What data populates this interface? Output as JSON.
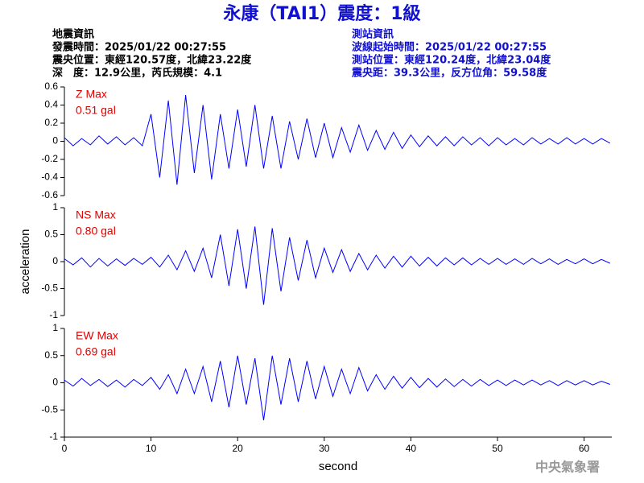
{
  "header": {
    "title": "永康（TAI1）震度：1級",
    "left": [
      "地震資訊",
      "發震時間：2025/01/22 00:27:55",
      "震央位置：東經120.57度，北緯23.22度",
      "深　度：12.9公里，芮氏規模：4.1"
    ],
    "right": [
      "測站資訊",
      "波線起始時間：2025/01/22 00:27:55",
      "測站位置：東經120.24度，北緯23.04度",
      "震央距：39.3公里，反方位角：59.58度"
    ],
    "watermark": "中央氣象署"
  },
  "chart_data": [
    {
      "type": "line",
      "annotation": [
        "Z Max",
        "0.51 gal"
      ],
      "color": "#0000ff",
      "x": [
        0,
        1,
        2,
        3,
        4,
        5,
        6,
        7,
        8,
        9,
        10,
        11,
        12,
        13,
        14,
        15,
        16,
        17,
        18,
        19,
        20,
        21,
        22,
        23,
        24,
        25,
        26,
        27,
        28,
        29,
        30,
        31,
        32,
        33,
        34,
        35,
        36,
        37,
        38,
        39,
        40,
        41,
        42,
        43,
        44,
        45,
        46,
        47,
        48,
        49,
        50,
        51,
        52,
        53,
        54,
        55,
        56,
        57,
        58,
        59,
        60,
        61,
        62,
        63
      ],
      "values": [
        0.04,
        -0.05,
        0.03,
        -0.04,
        0.06,
        -0.03,
        0.05,
        -0.04,
        0.04,
        -0.05,
        0.3,
        -0.4,
        0.45,
        -0.48,
        0.51,
        -0.35,
        0.4,
        -0.42,
        0.3,
        -0.3,
        0.35,
        -0.28,
        0.4,
        -0.3,
        0.28,
        -0.3,
        0.22,
        -0.2,
        0.25,
        -0.18,
        0.2,
        -0.18,
        0.15,
        -0.12,
        0.18,
        -0.1,
        0.12,
        -0.09,
        0.1,
        -0.08,
        0.07,
        -0.06,
        0.06,
        -0.05,
        0.05,
        -0.05,
        0.05,
        -0.04,
        0.04,
        -0.05,
        0.04,
        -0.04,
        0.03,
        -0.04,
        0.04,
        -0.03,
        0.03,
        -0.03,
        0.04,
        -0.03,
        0.03,
        -0.03,
        0.03,
        -0.02
      ],
      "xlim": [
        0,
        63.2
      ],
      "ylim": [
        -0.6,
        0.6
      ],
      "yticks": [
        -0.6,
        -0.4,
        -0.2,
        0,
        0.2,
        0.4,
        0.6
      ]
    },
    {
      "type": "line",
      "annotation": [
        "NS Max",
        "0.80 gal"
      ],
      "color": "#0000ff",
      "ylabel": "acceleration",
      "x": [
        0,
        1,
        2,
        3,
        4,
        5,
        6,
        7,
        8,
        9,
        10,
        11,
        12,
        13,
        14,
        15,
        16,
        17,
        18,
        19,
        20,
        21,
        22,
        23,
        24,
        25,
        26,
        27,
        28,
        29,
        30,
        31,
        32,
        33,
        34,
        35,
        36,
        37,
        38,
        39,
        40,
        41,
        42,
        43,
        44,
        45,
        46,
        47,
        48,
        49,
        50,
        51,
        52,
        53,
        54,
        55,
        56,
        57,
        58,
        59,
        60,
        61,
        62,
        63
      ],
      "values": [
        0.05,
        -0.06,
        0.07,
        -0.1,
        0.06,
        -0.08,
        0.05,
        -0.07,
        0.06,
        -0.05,
        0.08,
        -0.1,
        0.12,
        -0.15,
        0.2,
        -0.18,
        0.25,
        -0.3,
        0.5,
        -0.45,
        0.6,
        -0.5,
        0.65,
        -0.8,
        0.62,
        -0.55,
        0.45,
        -0.35,
        0.4,
        -0.3,
        0.25,
        -0.2,
        0.22,
        -0.18,
        0.15,
        -0.15,
        0.12,
        -0.12,
        0.1,
        -0.1,
        0.1,
        -0.08,
        0.08,
        -0.08,
        0.07,
        -0.06,
        0.07,
        -0.06,
        0.06,
        -0.05,
        0.06,
        -0.05,
        0.05,
        -0.05,
        0.06,
        -0.04,
        0.05,
        -0.05,
        0.04,
        -0.04,
        0.05,
        -0.04,
        0.04,
        -0.03
      ],
      "xlim": [
        0,
        63.2
      ],
      "ylim": [
        -1,
        1
      ],
      "yticks": [
        -1,
        -0.5,
        0,
        0.5,
        1
      ]
    },
    {
      "type": "line",
      "annotation": [
        "EW Max",
        "0.69 gal"
      ],
      "color": "#0000ff",
      "xlabel": "second",
      "x": [
        0,
        1,
        2,
        3,
        4,
        5,
        6,
        7,
        8,
        9,
        10,
        11,
        12,
        13,
        14,
        15,
        16,
        17,
        18,
        19,
        20,
        21,
        22,
        23,
        24,
        25,
        26,
        27,
        28,
        29,
        30,
        31,
        32,
        33,
        34,
        35,
        36,
        37,
        38,
        39,
        40,
        41,
        42,
        43,
        44,
        45,
        46,
        47,
        48,
        49,
        50,
        51,
        52,
        53,
        54,
        55,
        56,
        57,
        58,
        59,
        60,
        61,
        62,
        63
      ],
      "values": [
        0.05,
        -0.06,
        0.08,
        -0.05,
        0.06,
        -0.07,
        0.05,
        -0.08,
        0.06,
        -0.05,
        0.1,
        -0.12,
        0.15,
        -0.2,
        0.25,
        -0.2,
        0.3,
        -0.35,
        0.4,
        -0.45,
        0.5,
        -0.4,
        0.45,
        -0.69,
        0.5,
        -0.4,
        0.45,
        -0.35,
        0.4,
        -0.3,
        0.3,
        -0.25,
        0.25,
        -0.2,
        0.28,
        -0.15,
        0.15,
        -0.12,
        0.12,
        -0.1,
        0.1,
        -0.09,
        0.08,
        -0.08,
        0.07,
        -0.07,
        0.06,
        -0.06,
        0.06,
        -0.05,
        0.05,
        -0.05,
        0.05,
        -0.04,
        0.05,
        -0.04,
        0.04,
        -0.05,
        0.04,
        -0.04,
        0.04,
        -0.04,
        0.03,
        -0.03
      ],
      "xlim": [
        0,
        63.2
      ],
      "ylim": [
        -1,
        1
      ],
      "yticks": [
        -1,
        -0.5,
        0,
        0.5,
        1
      ],
      "xticks": [
        0,
        10,
        20,
        30,
        40,
        50,
        60
      ]
    }
  ]
}
